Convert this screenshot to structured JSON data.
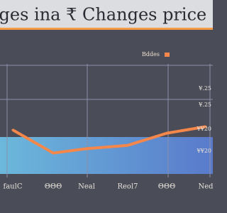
{
  "chart_data": {
    "type": "line",
    "title": "anges ina ₹ Changes price",
    "categories": [
      "faulC",
      "ΘΘΘ",
      "Neal",
      "Reol7",
      "ΘΘΘ",
      "Ned"
    ],
    "series": [
      {
        "name": "Bddes",
        "color": "#f5874a",
        "values": [
          40,
          19,
          23,
          26,
          37,
          43
        ]
      }
    ],
    "ylim": [
      0,
      100
    ],
    "annotations": [
      "¥.25",
      "¥.25",
      "¥¥20",
      "¥¥20"
    ],
    "grid": true
  }
}
